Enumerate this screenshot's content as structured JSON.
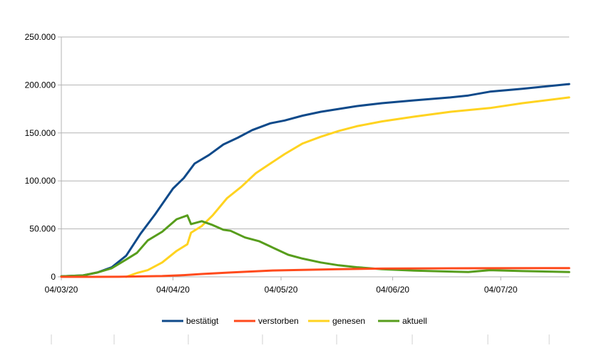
{
  "chart_data": {
    "type": "line",
    "ylim": [
      0,
      250000
    ],
    "yticks": [
      0,
      50000,
      100000,
      150000,
      200000,
      250000
    ],
    "ytick_labels": [
      "0",
      "50.000",
      "100.000",
      "150.000",
      "200.000",
      "250.000"
    ],
    "xticks": [
      "2020-03-04",
      "2020-04-04",
      "2020-05-04",
      "2020-06-04",
      "2020-07-04"
    ],
    "xtick_labels": [
      "04/03/20",
      "04/04/20",
      "04/05/20",
      "04/06/20",
      "04/07/20"
    ],
    "xlim": [
      "2020-03-04",
      "2020-07-23"
    ],
    "grid": "horizontal",
    "legend_position": "bottom",
    "series": [
      {
        "name": "bestätigt",
        "color": "#0f4a8a",
        "points": [
          [
            "2020-03-04",
            500
          ],
          [
            "2020-03-10",
            1500
          ],
          [
            "2020-03-14",
            4500
          ],
          [
            "2020-03-18",
            10000
          ],
          [
            "2020-03-22",
            22000
          ],
          [
            "2020-03-26",
            45000
          ],
          [
            "2020-03-30",
            65000
          ],
          [
            "2020-04-04",
            92000
          ],
          [
            "2020-04-07",
            103000
          ],
          [
            "2020-04-10",
            118000
          ],
          [
            "2020-04-14",
            127000
          ],
          [
            "2020-04-18",
            138000
          ],
          [
            "2020-04-22",
            145000
          ],
          [
            "2020-04-26",
            153000
          ],
          [
            "2020-05-01",
            160000
          ],
          [
            "2020-05-05",
            163000
          ],
          [
            "2020-05-10",
            168000
          ],
          [
            "2020-05-15",
            172000
          ],
          [
            "2020-05-20",
            175000
          ],
          [
            "2020-05-25",
            178000
          ],
          [
            "2020-06-01",
            181000
          ],
          [
            "2020-06-10",
            184000
          ],
          [
            "2020-06-20",
            187000
          ],
          [
            "2020-06-25",
            189000
          ],
          [
            "2020-07-01",
            193000
          ],
          [
            "2020-07-10",
            196000
          ],
          [
            "2020-07-23",
            201000
          ]
        ]
      },
      {
        "name": "verstorben",
        "color": "#ff4a1c",
        "points": [
          [
            "2020-03-04",
            0
          ],
          [
            "2020-03-20",
            100
          ],
          [
            "2020-04-01",
            800
          ],
          [
            "2020-04-07",
            1800
          ],
          [
            "2020-04-12",
            3000
          ],
          [
            "2020-04-20",
            4500
          ],
          [
            "2020-05-01",
            6500
          ],
          [
            "2020-05-10",
            7200
          ],
          [
            "2020-05-20",
            8000
          ],
          [
            "2020-06-01",
            8600
          ],
          [
            "2020-06-15",
            8800
          ],
          [
            "2020-07-01",
            9000
          ],
          [
            "2020-07-23",
            9100
          ]
        ]
      },
      {
        "name": "genesen",
        "color": "#ffd320",
        "points": [
          [
            "2020-03-22",
            0
          ],
          [
            "2020-03-25",
            4000
          ],
          [
            "2020-03-28",
            7000
          ],
          [
            "2020-04-01",
            15000
          ],
          [
            "2020-04-05",
            27000
          ],
          [
            "2020-04-08",
            34000
          ],
          [
            "2020-04-09",
            46000
          ],
          [
            "2020-04-12",
            53000
          ],
          [
            "2020-04-15",
            64000
          ],
          [
            "2020-04-19",
            82000
          ],
          [
            "2020-04-23",
            94000
          ],
          [
            "2020-04-27",
            108000
          ],
          [
            "2020-05-01",
            118000
          ],
          [
            "2020-05-05",
            128000
          ],
          [
            "2020-05-10",
            139000
          ],
          [
            "2020-05-15",
            146000
          ],
          [
            "2020-05-20",
            152000
          ],
          [
            "2020-05-25",
            157000
          ],
          [
            "2020-06-01",
            162000
          ],
          [
            "2020-06-10",
            167000
          ],
          [
            "2020-06-20",
            172000
          ],
          [
            "2020-07-01",
            176000
          ],
          [
            "2020-07-10",
            181000
          ],
          [
            "2020-07-23",
            187000
          ]
        ]
      },
      {
        "name": "aktuell",
        "color": "#579d1c",
        "points": [
          [
            "2020-03-04",
            500
          ],
          [
            "2020-03-10",
            1500
          ],
          [
            "2020-03-14",
            4500
          ],
          [
            "2020-03-18",
            9000
          ],
          [
            "2020-03-22",
            18000
          ],
          [
            "2020-03-25",
            25000
          ],
          [
            "2020-03-28",
            38000
          ],
          [
            "2020-04-01",
            47000
          ],
          [
            "2020-04-05",
            60000
          ],
          [
            "2020-04-08",
            64000
          ],
          [
            "2020-04-09",
            55000
          ],
          [
            "2020-04-12",
            58000
          ],
          [
            "2020-04-15",
            54000
          ],
          [
            "2020-04-18",
            49000
          ],
          [
            "2020-04-20",
            48000
          ],
          [
            "2020-04-24",
            41000
          ],
          [
            "2020-04-28",
            37000
          ],
          [
            "2020-05-02",
            30000
          ],
          [
            "2020-05-06",
            23000
          ],
          [
            "2020-05-10",
            19000
          ],
          [
            "2020-05-15",
            15000
          ],
          [
            "2020-05-20",
            12000
          ],
          [
            "2020-05-25",
            10000
          ],
          [
            "2020-06-01",
            8000
          ],
          [
            "2020-06-10",
            6500
          ],
          [
            "2020-06-20",
            5500
          ],
          [
            "2020-06-25",
            5000
          ],
          [
            "2020-07-01",
            7000
          ],
          [
            "2020-07-10",
            6000
          ],
          [
            "2020-07-23",
            5000
          ]
        ]
      }
    ]
  }
}
